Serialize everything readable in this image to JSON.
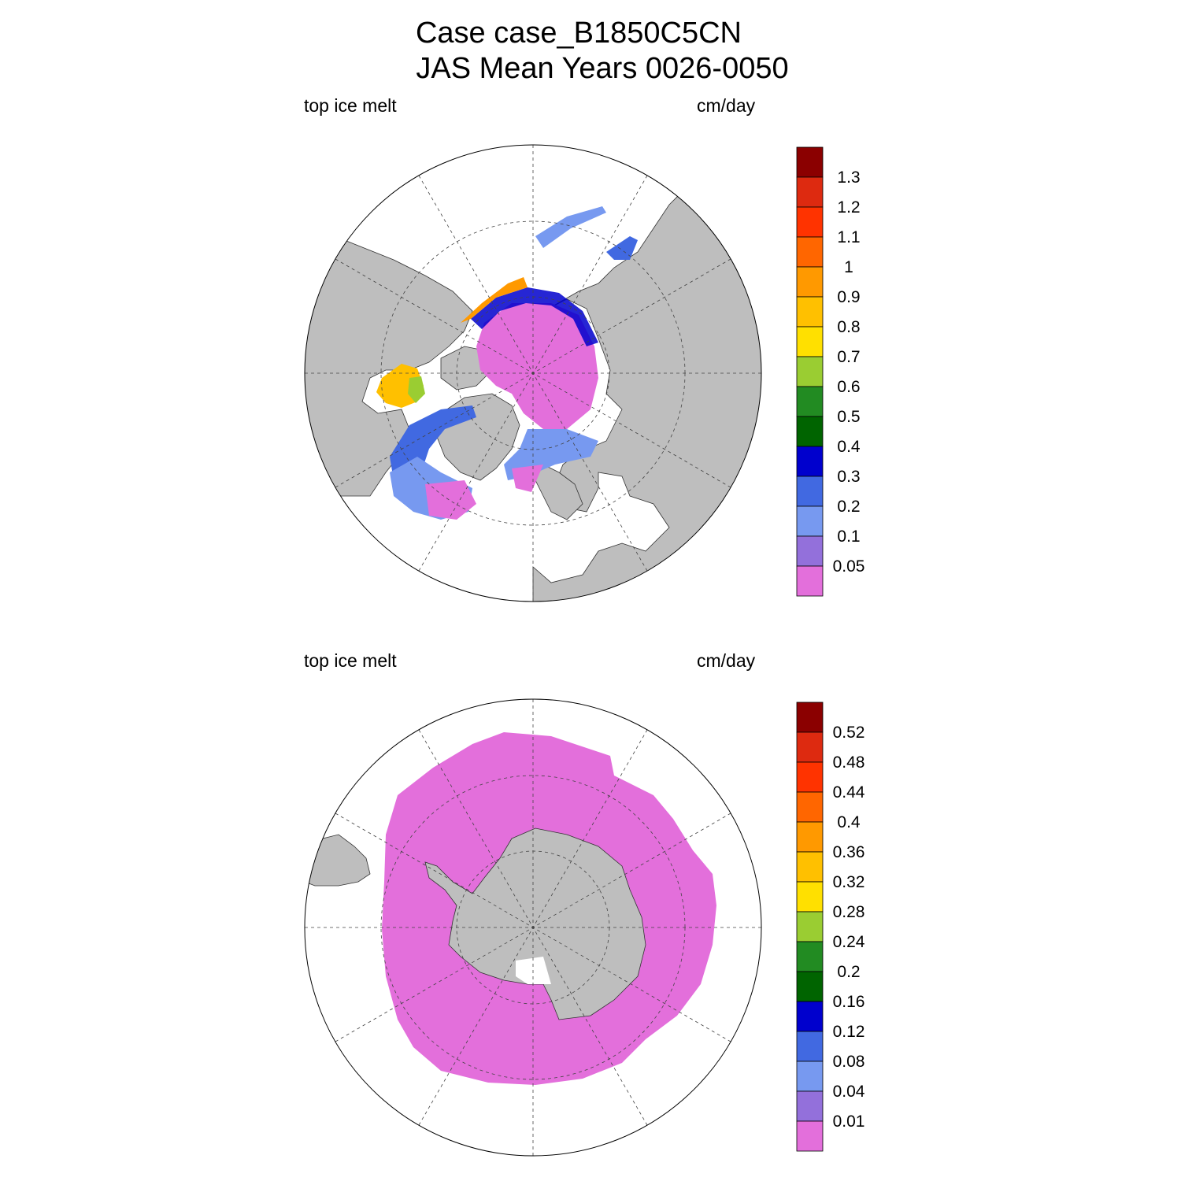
{
  "title": {
    "line1": "Case case_B1850C5CN",
    "line2": "JAS Mean   Years 0026-0050"
  },
  "colors": {
    "land": "#bebebe",
    "fill_classes": [
      "#e36fdb",
      "#9370db",
      "#7799f0",
      "#4169e1",
      "#0000cd",
      "#006400",
      "#228b22",
      "#9acd32",
      "#ffe000",
      "#ffc000",
      "#ff9900",
      "#ff6600",
      "#ff3300",
      "#dd2a10",
      "#8b0000"
    ]
  },
  "panels": [
    {
      "id": "north",
      "hemisphere": "Northern Hemisphere (North Polar Stereographic)",
      "left_label": "top ice melt",
      "right_label": "cm/day",
      "colorbar_levels": [
        "0.05",
        "0.1",
        "0.2",
        "0.3",
        "0.4",
        "0.5",
        "0.6",
        "0.7",
        "0.8",
        "0.9",
        "1",
        "1.1",
        "1.2",
        "1.3"
      ]
    },
    {
      "id": "south",
      "hemisphere": "Southern Hemisphere (South Polar Stereographic)",
      "left_label": "top ice melt",
      "right_label": "cm/day",
      "colorbar_levels": [
        "0.01",
        "0.04",
        "0.08",
        "0.12",
        "0.16",
        "0.2",
        "0.24",
        "0.28",
        "0.32",
        "0.36",
        "0.4",
        "0.44",
        "0.48",
        "0.52"
      ]
    }
  ]
}
